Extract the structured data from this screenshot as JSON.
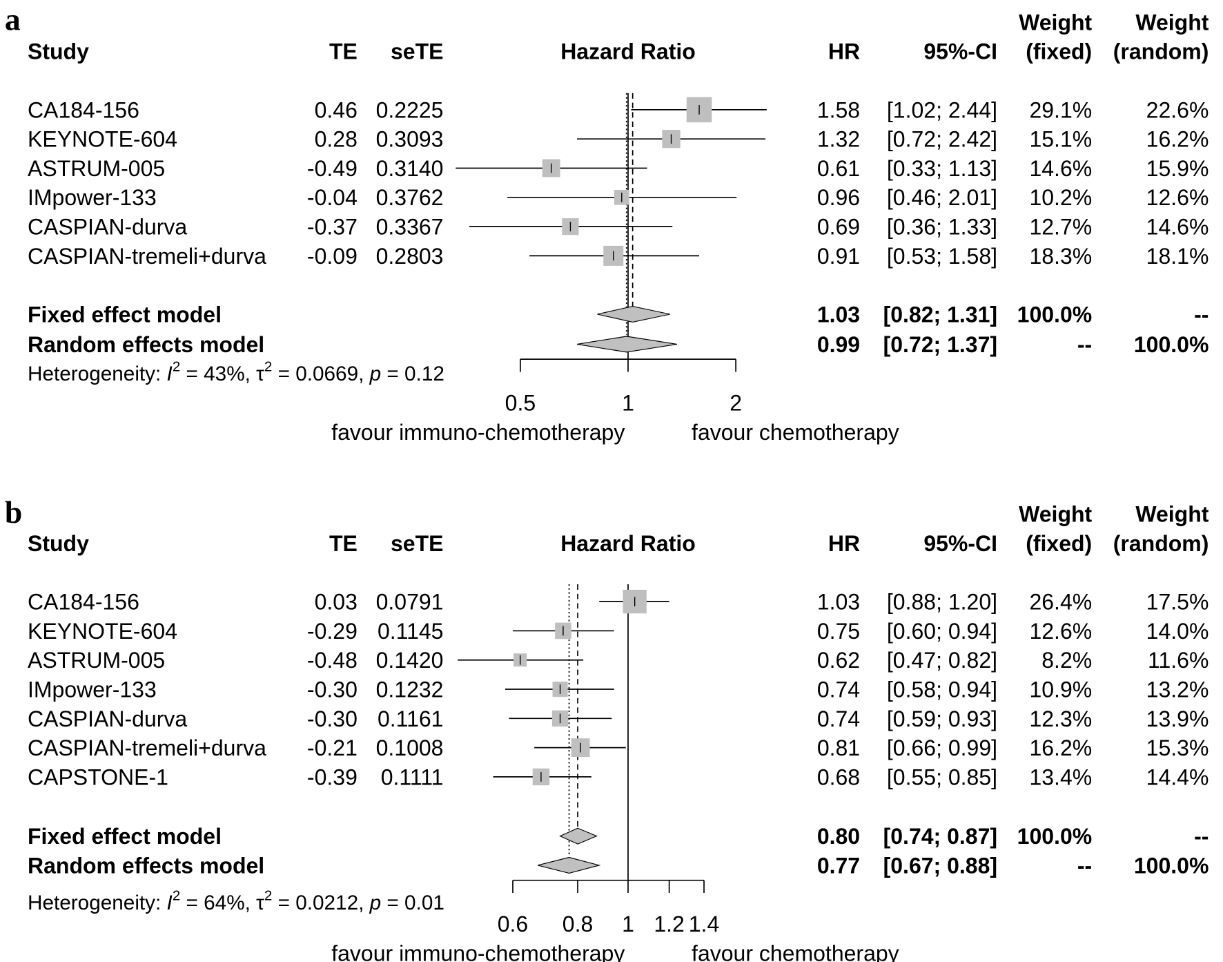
{
  "chart_data": [
    {
      "type": "forest",
      "panel_label": "a",
      "scale": "log",
      "columns": {
        "study": "Study",
        "te": "TE",
        "sete": "seTE",
        "plot": "Hazard Ratio",
        "hr": "HR",
        "ci": "95%-CI",
        "wfixed": [
          "Weight",
          "(fixed)"
        ],
        "wrandom": [
          "Weight",
          "(random)"
        ]
      },
      "studies": [
        {
          "name": "CA184-156",
          "te": "0.46",
          "sete": "0.2225",
          "hr": 1.58,
          "lo": 1.02,
          "hi": 2.44,
          "hr_text": "1.58",
          "ci_text": "[1.02; 2.44]",
          "wfixed": 29.1,
          "wfixed_text": "29.1%",
          "wrandom_text": "22.6%"
        },
        {
          "name": "KEYNOTE-604",
          "te": "0.28",
          "sete": "0.3093",
          "hr": 1.32,
          "lo": 0.72,
          "hi": 2.42,
          "hr_text": "1.32",
          "ci_text": "[0.72; 2.42]",
          "wfixed": 15.1,
          "wfixed_text": "15.1%",
          "wrandom_text": "16.2%"
        },
        {
          "name": "ASTRUM-005",
          "te": "-0.49",
          "sete": "0.3140",
          "hr": 0.61,
          "lo": 0.33,
          "hi": 1.13,
          "hr_text": "0.61",
          "ci_text": "[0.33; 1.13]",
          "wfixed": 14.6,
          "wfixed_text": "14.6%",
          "wrandom_text": "15.9%"
        },
        {
          "name": "IMpower-133",
          "te": "-0.04",
          "sete": "0.3762",
          "hr": 0.96,
          "lo": 0.46,
          "hi": 2.01,
          "hr_text": "0.96",
          "ci_text": "[0.46; 2.01]",
          "wfixed": 10.2,
          "wfixed_text": "10.2%",
          "wrandom_text": "12.6%"
        },
        {
          "name": "CASPIAN-durva",
          "te": "-0.37",
          "sete": "0.3367",
          "hr": 0.69,
          "lo": 0.36,
          "hi": 1.33,
          "hr_text": "0.69",
          "ci_text": "[0.36; 1.33]",
          "wfixed": 12.7,
          "wfixed_text": "12.7%",
          "wrandom_text": "14.6%"
        },
        {
          "name": "CASPIAN-tremeli+durva",
          "te": "-0.09",
          "sete": "0.2803",
          "hr": 0.91,
          "lo": 0.53,
          "hi": 1.58,
          "hr_text": "0.91",
          "ci_text": "[0.53; 1.58]",
          "wfixed": 18.3,
          "wfixed_text": "18.3%",
          "wrandom_text": "18.1%"
        }
      ],
      "models": [
        {
          "name": "Fixed effect model",
          "hr": 1.03,
          "lo": 0.82,
          "hi": 1.31,
          "hr_text": "1.03",
          "ci_text": "[0.82; 1.31]",
          "wfixed_text": "100.0%",
          "wrandom_text": "--"
        },
        {
          "name": "Random effects model",
          "hr": 0.99,
          "lo": 0.72,
          "hi": 1.37,
          "hr_text": "0.99",
          "ci_text": "[0.72; 1.37]",
          "wfixed_text": "--",
          "wrandom_text": "100.0%"
        }
      ],
      "heterogeneity": {
        "label": "Heterogeneity:",
        "i2": "43%",
        "tau2": "0.0669",
        "p": "0.12"
      },
      "xticks": [
        0.5,
        1,
        2
      ],
      "xtick_labels": [
        "0.5",
        "1",
        "2"
      ],
      "xlim": [
        0.5,
        2
      ],
      "favour_left": "favour immuno-chemotherapy",
      "favour_right": "favour chemotherapy",
      "colors": {
        "square": "#bfbfbf",
        "diamond": "#c0c0c0"
      }
    },
    {
      "type": "forest",
      "panel_label": "b",
      "scale": "log",
      "columns": {
        "study": "Study",
        "te": "TE",
        "sete": "seTE",
        "plot": "Hazard Ratio",
        "hr": "HR",
        "ci": "95%-CI",
        "wfixed": [
          "Weight",
          "(fixed)"
        ],
        "wrandom": [
          "Weight",
          "(random)"
        ]
      },
      "studies": [
        {
          "name": "CA184-156",
          "te": "0.03",
          "sete": "0.0791",
          "hr": 1.03,
          "lo": 0.88,
          "hi": 1.2,
          "hr_text": "1.03",
          "ci_text": "[0.88; 1.20]",
          "wfixed": 26.4,
          "wfixed_text": "26.4%",
          "wrandom_text": "17.5%"
        },
        {
          "name": "KEYNOTE-604",
          "te": "-0.29",
          "sete": "0.1145",
          "hr": 0.75,
          "lo": 0.6,
          "hi": 0.94,
          "hr_text": "0.75",
          "ci_text": "[0.60; 0.94]",
          "wfixed": 12.6,
          "wfixed_text": "12.6%",
          "wrandom_text": "14.0%"
        },
        {
          "name": "ASTRUM-005",
          "te": "-0.48",
          "sete": "0.1420",
          "hr": 0.62,
          "lo": 0.47,
          "hi": 0.82,
          "hr_text": "0.62",
          "ci_text": "[0.47; 0.82]",
          "wfixed": 8.2,
          "wfixed_text": "8.2%",
          "wrandom_text": "11.6%"
        },
        {
          "name": "IMpower-133",
          "te": "-0.30",
          "sete": "0.1232",
          "hr": 0.74,
          "lo": 0.58,
          "hi": 0.94,
          "hr_text": "0.74",
          "ci_text": "[0.58; 0.94]",
          "wfixed": 10.9,
          "wfixed_text": "10.9%",
          "wrandom_text": "13.2%"
        },
        {
          "name": "CASPIAN-durva",
          "te": "-0.30",
          "sete": "0.1161",
          "hr": 0.74,
          "lo": 0.59,
          "hi": 0.93,
          "hr_text": "0.74",
          "ci_text": "[0.59; 0.93]",
          "wfixed": 12.3,
          "wfixed_text": "12.3%",
          "wrandom_text": "13.9%"
        },
        {
          "name": "CASPIAN-tremeli+durva",
          "te": "-0.21",
          "sete": "0.1008",
          "hr": 0.81,
          "lo": 0.66,
          "hi": 0.99,
          "hr_text": "0.81",
          "ci_text": "[0.66; 0.99]",
          "wfixed": 16.2,
          "wfixed_text": "16.2%",
          "wrandom_text": "15.3%"
        },
        {
          "name": "CAPSTONE-1",
          "te": "-0.39",
          "sete": "0.1111",
          "hr": 0.68,
          "lo": 0.55,
          "hi": 0.85,
          "hr_text": "0.68",
          "ci_text": "[0.55; 0.85]",
          "wfixed": 13.4,
          "wfixed_text": "13.4%",
          "wrandom_text": "14.4%"
        }
      ],
      "models": [
        {
          "name": "Fixed effect model",
          "hr": 0.8,
          "lo": 0.74,
          "hi": 0.87,
          "hr_text": "0.80",
          "ci_text": "[0.74; 0.87]",
          "wfixed_text": "100.0%",
          "wrandom_text": "--"
        },
        {
          "name": "Random effects model",
          "hr": 0.77,
          "lo": 0.67,
          "hi": 0.88,
          "hr_text": "0.77",
          "ci_text": "[0.67; 0.88]",
          "wfixed_text": "--",
          "wrandom_text": "100.0%"
        }
      ],
      "heterogeneity": {
        "label": "Heterogeneity:",
        "i2": "64%",
        "tau2": "0.0212",
        "p": "0.01"
      },
      "xticks": [
        0.6,
        0.8,
        1,
        1.2,
        1.4
      ],
      "xtick_labels": [
        "0.6",
        "0.8",
        "1",
        "1.2",
        "1.4"
      ],
      "xlim": [
        0.6,
        1.4
      ],
      "favour_left": "favour immuno-chemotherapy",
      "favour_right": "favour chemotherapy",
      "colors": {
        "square": "#bfbfbf",
        "diamond": "#c0c0c0"
      }
    }
  ]
}
